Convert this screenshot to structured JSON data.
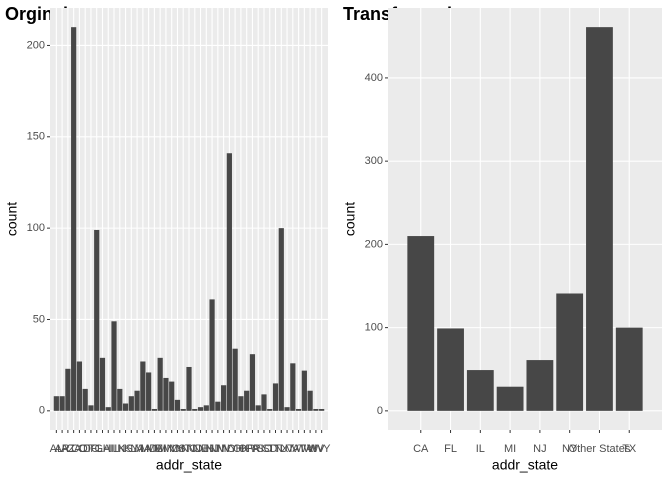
{
  "chart_data": [
    {
      "type": "bar",
      "title": "Orginal",
      "x_label": "addr_state",
      "y_label": "count",
      "color": "#474747",
      "grid": true,
      "categories": [
        "AL",
        "AR",
        "AZ",
        "CA",
        "CO",
        "CT",
        "DC",
        "FL",
        "GA",
        "HI",
        "IL",
        "IN",
        "KS",
        "KY",
        "LA",
        "MA",
        "MD",
        "ME",
        "MI",
        "MN",
        "MO",
        "MS",
        "MT",
        "NC",
        "ND",
        "NE",
        "NH",
        "NJ",
        "NM",
        "NV",
        "NY",
        "OH",
        "OK",
        "OR",
        "PA",
        "RI",
        "SC",
        "SD",
        "TN",
        "TX",
        "UT",
        "VA",
        "VT",
        "WA",
        "WI",
        "WV",
        "WY"
      ],
      "values": [
        8,
        8,
        23,
        210,
        27,
        12,
        3,
        99,
        29,
        2,
        49,
        12,
        4,
        8,
        11,
        27,
        21,
        1,
        29,
        18,
        16,
        6,
        1,
        24,
        1,
        2,
        3,
        61,
        5,
        14,
        141,
        34,
        8,
        11,
        31,
        3,
        9,
        1,
        15,
        100,
        2,
        26,
        1,
        22,
        11,
        1,
        1
      ],
      "ylim": [
        -10.5,
        220.5
      ],
      "yticks": [
        0,
        50,
        100,
        150,
        200
      ]
    },
    {
      "type": "bar",
      "title": "Transformed",
      "x_label": "addr_state",
      "y_label": "count",
      "color": "#474747",
      "grid": true,
      "categories": [
        "CA",
        "FL",
        "IL",
        "MI",
        "NJ",
        "NY",
        "Other States",
        "TX"
      ],
      "values": [
        210,
        99,
        49,
        29,
        61,
        141,
        461,
        100
      ],
      "ylim": [
        -23,
        484
      ],
      "yticks": [
        0,
        100,
        200,
        300,
        400
      ]
    }
  ]
}
